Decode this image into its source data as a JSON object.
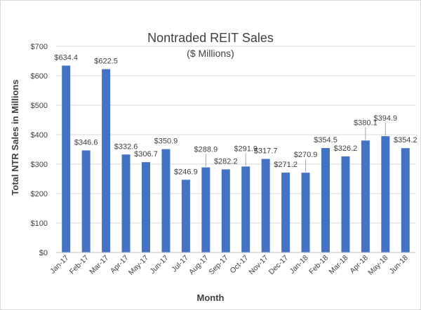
{
  "chart_data": {
    "type": "bar",
    "title": "Nontraded REIT Sales",
    "subtitle": "($ Millions)",
    "xlabel": "Month",
    "ylabel": "Total NTR Sales in Millions",
    "categories": [
      "Jan-17",
      "Feb-17",
      "Mar-17",
      "Apr-17",
      "May-17",
      "Jun-17",
      "Jul-17",
      "Aug-17",
      "Sep-17",
      "Oct-17",
      "Nov-17",
      "Dec-17",
      "Jan-18",
      "Feb-18",
      "Mar-18",
      "Apr-18",
      "May-18",
      "Jun-18"
    ],
    "values": [
      634.4,
      346.6,
      622.5,
      332.6,
      306.7,
      350.9,
      246.9,
      288.9,
      282.2,
      291.9,
      317.7,
      271.2,
      270.9,
      354.5,
      326.2,
      380.1,
      394.9,
      354.2
    ],
    "data_labels": [
      "$634.4",
      "$346.6",
      "$622.5",
      "$332.6",
      "$306.7",
      "$350.9",
      "$246.9",
      "$288.9",
      "$282.2",
      "$291.9",
      "$317.7",
      "$271.2",
      "$270.9",
      "$354.5",
      "$326.2",
      "$380.1",
      "$394.9",
      "$354.2"
    ],
    "ylim": [
      0,
      700
    ],
    "yticks": [
      0,
      100,
      200,
      300,
      400,
      500,
      600,
      700
    ],
    "ytick_labels": [
      "$0",
      "$100",
      "$200",
      "$300",
      "$400",
      "$500",
      "$600",
      "$700"
    ],
    "grid": true,
    "legend": "none",
    "bar_color": "#4472C4",
    "gridline_color": "#d9d9d9"
  }
}
